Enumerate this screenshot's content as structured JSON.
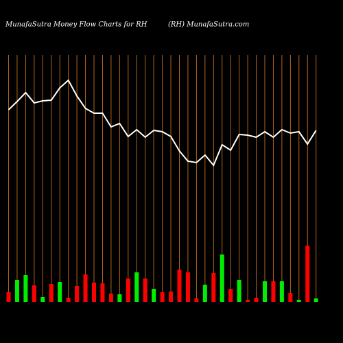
{
  "chart_data": {
    "type": "money-flow",
    "title": "MunafaSutra  Money Flow  Charts for RH",
    "subtitle": "(RH) MunafaSutra.com",
    "categories": [
      null,
      null,
      null,
      null,
      null,
      null,
      null,
      null,
      null,
      null,
      null,
      null,
      null,
      null,
      null,
      null,
      null,
      null,
      null,
      null,
      null,
      null,
      null,
      null,
      null,
      null,
      null,
      null,
      null,
      null,
      null,
      null,
      null,
      null,
      null,
      null,
      null
    ],
    "ylim": [
      0,
      440
    ],
    "grid_color": "#b5651d",
    "line": {
      "color": "#ffffff",
      "values": [
        280,
        292,
        305,
        290,
        293,
        294,
        312,
        323,
        300,
        282,
        275,
        275,
        255,
        260,
        241,
        251,
        240,
        250,
        248,
        241,
        220,
        205,
        203,
        214,
        199,
        229,
        221,
        244,
        243,
        240,
        248,
        240,
        251,
        246,
        248,
        230,
        250
      ]
    },
    "bars": {
      "values": [
        14,
        32,
        39,
        24,
        7,
        26,
        29,
        6,
        23,
        40,
        28,
        27,
        12,
        11,
        34,
        43,
        34,
        19,
        14,
        15,
        47,
        43,
        5,
        25,
        42,
        69,
        19,
        32,
        3,
        6,
        30,
        30,
        30,
        13,
        3,
        82,
        5
      ],
      "colors": [
        "#ff0000",
        "#00ee00",
        "#00ee00",
        "#ff0000",
        "#00ee00",
        "#ff0000",
        "#00ee00",
        "#ff0000",
        "#ff0000",
        "#ff0000",
        "#ff0000",
        "#ff0000",
        "#ff0000",
        "#00ee00",
        "#ff0000",
        "#00ee00",
        "#ff0000",
        "#00ee00",
        "#ff0000",
        "#ff0000",
        "#ff0000",
        "#ff0000",
        "#ff0000",
        "#00ee00",
        "#ff0000",
        "#00ee00",
        "#ff0000",
        "#00ee00",
        "#ff0000",
        "#ff0000",
        "#00ee00",
        "#ff0000",
        "#00ee00",
        "#ff0000",
        "#00ee00",
        "#ff0000",
        "#00ee00"
      ]
    }
  }
}
